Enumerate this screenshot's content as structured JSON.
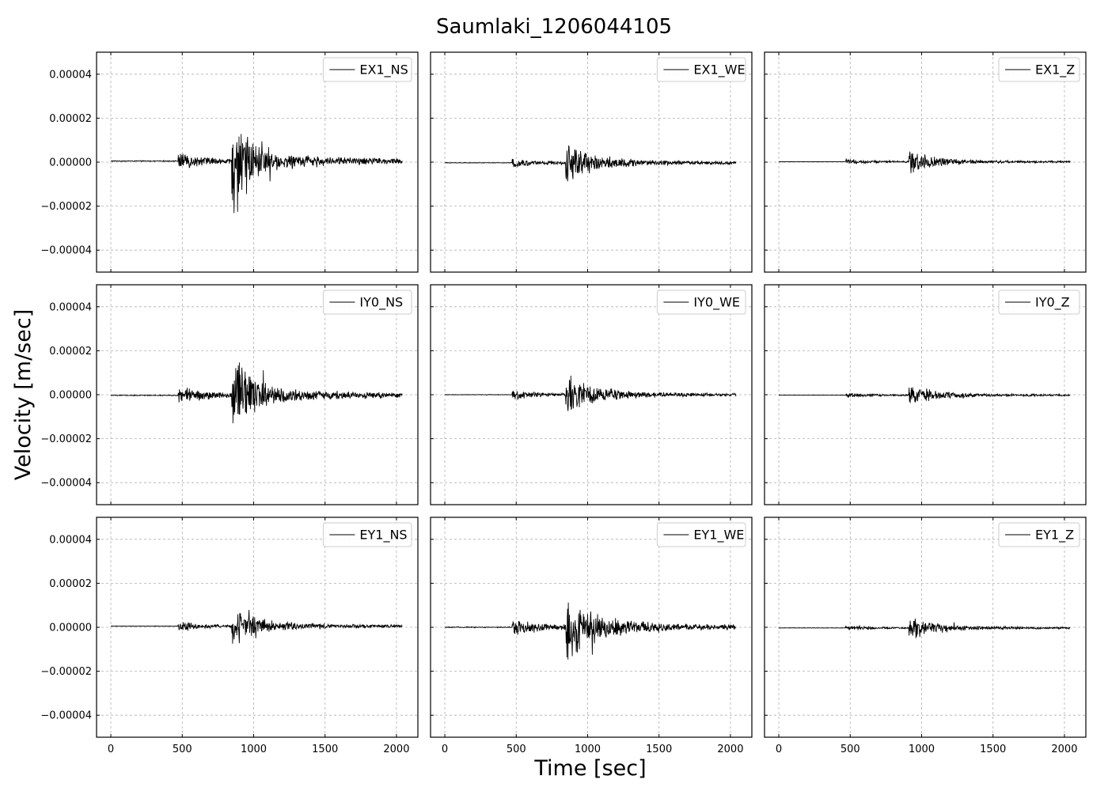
{
  "figure": {
    "title": "Saumlaki_1206044105",
    "xlabel": "Time [sec]",
    "ylabel": "Velocity [m/sec]"
  },
  "chart_data": {
    "type": "line",
    "layout": "3x3 grid, shared x and y axes",
    "xlim": [
      -100,
      2150
    ],
    "ylim": [
      -5e-05,
      5e-05
    ],
    "xticks": [
      0,
      500,
      1000,
      1500,
      2000
    ],
    "xtick_labels": [
      "0",
      "500",
      "1000",
      "1500",
      "2000"
    ],
    "yticks": [
      4e-05,
      2e-05,
      0.0,
      -2e-05,
      -4e-05
    ],
    "ytick_labels": [
      "0.00004",
      "0.00002",
      "0.00000",
      "−0.00002",
      "−0.00004"
    ],
    "grid": true,
    "legend_position": "top-right",
    "panels": [
      {
        "name": "EX1_NS",
        "baseline": 5e-07,
        "amp": 1.0,
        "first_arrival": 470,
        "second_arrival": 845,
        "peak": 1.25e-05
      },
      {
        "name": "EX1_WE",
        "baseline": -3e-07,
        "amp": 0.85,
        "first_arrival": 470,
        "second_arrival": 845,
        "peak": 8e-06
      },
      {
        "name": "EX1_Z",
        "baseline": 2e-07,
        "amp": 0.7,
        "first_arrival": 465,
        "second_arrival": 910,
        "peak": 5.5e-06
      },
      {
        "name": "IY0_NS",
        "baseline": -3e-07,
        "amp": 1.0,
        "first_arrival": 470,
        "second_arrival": 845,
        "peak": 1.15e-05
      },
      {
        "name": "IY0_WE",
        "baseline": 0.0,
        "amp": 0.85,
        "first_arrival": 470,
        "second_arrival": 845,
        "peak": 8e-06
      },
      {
        "name": "IY0_Z",
        "baseline": -2e-07,
        "amp": 0.7,
        "first_arrival": 465,
        "second_arrival": 910,
        "peak": 5.5e-06
      },
      {
        "name": "EY1_NS",
        "baseline": 5e-07,
        "amp": 0.9,
        "first_arrival": 470,
        "second_arrival": 845,
        "peak": 7e-06
      },
      {
        "name": "EY1_WE",
        "baseline": 0.0,
        "amp": 1.0,
        "first_arrival": 470,
        "second_arrival": 845,
        "peak": 1.2e-05
      },
      {
        "name": "EY1_Z",
        "baseline": -3e-07,
        "amp": 0.7,
        "first_arrival": 465,
        "second_arrival": 910,
        "peak": 5.5e-06
      }
    ],
    "series_x_range": [
      0,
      2040
    ],
    "line_color": "#000000",
    "grid_color": "#b0b0b0"
  }
}
